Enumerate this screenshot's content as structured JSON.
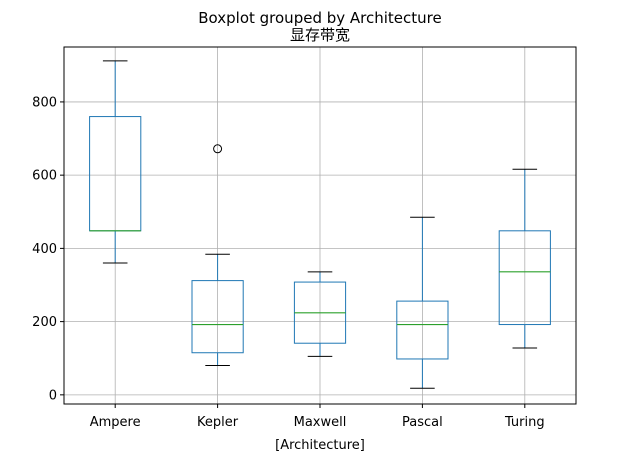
{
  "chart_data": {
    "type": "boxplot",
    "title": "Boxplot grouped by Architecture",
    "subtitle": "显存带宽",
    "xlabel": "[Architecture]",
    "ylabel": "",
    "ylim": [
      -25,
      950
    ],
    "yticks": [
      0,
      200,
      400,
      600,
      800
    ],
    "grid": true,
    "categories": [
      "Ampere",
      "Kepler",
      "Maxwell",
      "Pascal",
      "Turing"
    ],
    "boxes": [
      {
        "category": "Ampere",
        "whisker_low": 360,
        "q1": 448,
        "median": 448,
        "q3": 760,
        "whisker_high": 912,
        "outliers": []
      },
      {
        "category": "Kepler",
        "whisker_low": 80,
        "q1": 115,
        "median": 192,
        "q3": 312,
        "whisker_high": 384,
        "outliers": [
          672
        ]
      },
      {
        "category": "Maxwell",
        "whisker_low": 105,
        "q1": 141,
        "median": 224,
        "q3": 308,
        "whisker_high": 336,
        "outliers": []
      },
      {
        "category": "Pascal",
        "whisker_low": 18,
        "q1": 98,
        "median": 192,
        "q3": 256,
        "whisker_high": 485,
        "outliers": []
      },
      {
        "category": "Turing",
        "whisker_low": 128,
        "q1": 192,
        "median": 336,
        "q3": 448,
        "whisker_high": 616,
        "outliers": []
      }
    ],
    "colors": {
      "box": "#1f77b4",
      "median": "#2ca02c",
      "whisker": "#1f77b4",
      "cap": "#000000",
      "grid": "#b0b0b0",
      "outlier": "#000000"
    }
  }
}
